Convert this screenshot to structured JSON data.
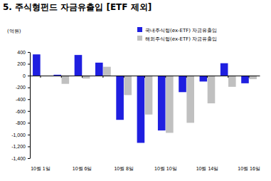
{
  "chart_data": {
    "type": "bar",
    "title": "5. 주식형펀드 자금유출입 [ETF 제외]",
    "y_label": "(억원)",
    "categories": [
      "10월 1일",
      null,
      "10월 6일",
      null,
      "10월 8일",
      null,
      "10월 10일",
      null,
      "10월 14일",
      null,
      "10월 16일"
    ],
    "series": [
      {
        "name": "국내주식형(ex-ETF) 자금유출입",
        "color": "#1f1fe0",
        "values": [
          360,
          15,
          350,
          220,
          -750,
          -1140,
          -930,
          -280,
          -100,
          210,
          -130
        ]
      },
      {
        "name": "해외주식형(ex-ETF) 자금유출입",
        "color": "#c0c0c0",
        "values": [
          0,
          -140,
          -50,
          150,
          -330,
          -660,
          -970,
          -800,
          -470,
          -190,
          -60
        ]
      }
    ],
    "ylim": [
      -1400,
      400
    ],
    "yticks": [
      400,
      200,
      0,
      -200,
      -400,
      -600,
      -800,
      {
        "value": -1000,
        "label": "-1,000"
      },
      {
        "value": -1200,
        "label": "-1,200"
      },
      {
        "value": -1400,
        "label": "-1,400"
      }
    ],
    "grid": false,
    "legend": "top-right"
  }
}
